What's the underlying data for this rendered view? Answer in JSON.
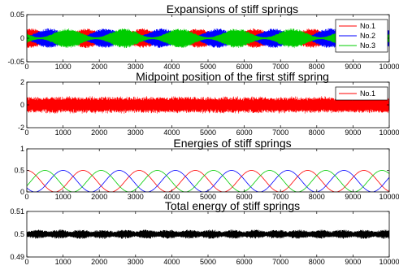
{
  "chart_data": [
    {
      "type": "line",
      "title": "Expansions of stiff springs",
      "xlabel": "",
      "ylabel": "",
      "xlim": [
        0,
        10000
      ],
      "ylim": [
        -0.05,
        0.05
      ],
      "xticks": [
        "0",
        "1000",
        "2000",
        "3000",
        "4000",
        "5000",
        "6000",
        "7000",
        "8000",
        "9000",
        "10000"
      ],
      "yticks": [
        "0.05",
        "0",
        "-0.05"
      ],
      "legend_position": "top-right",
      "series": [
        {
          "name": "No.1",
          "color": "#ff0000",
          "envelope": "amplitude ~0.02, beats with period ~1550, peaks near 100, 1700, 3200, 4700, 6200, 7700, 9300"
        },
        {
          "name": "No.2",
          "color": "#0000ff",
          "envelope": "amplitude ~0.02, beats shifted by one third period"
        },
        {
          "name": "No.3",
          "color": "#00cc00",
          "envelope": "amplitude ~0.02, beats shifted by two thirds period"
        }
      ]
    },
    {
      "type": "line",
      "title": "Midpoint position of the first stiff spring",
      "xlabel": "",
      "ylabel": "",
      "xlim": [
        0,
        10000
      ],
      "ylim": [
        -2,
        2
      ],
      "xticks": [
        "0",
        "1000",
        "2000",
        "3000",
        "4000",
        "5000",
        "6000",
        "7000",
        "8000",
        "9000",
        "10000"
      ],
      "yticks": [
        "2",
        "0",
        "-2"
      ],
      "legend_position": "top-right",
      "series": [
        {
          "name": "No.1",
          "color": "#ff0000",
          "range": [
            -0.7,
            0.7
          ]
        }
      ]
    },
    {
      "type": "line",
      "title": "Energies of stiff springs",
      "xlabel": "",
      "ylabel": "",
      "xlim": [
        0,
        10000
      ],
      "ylim": [
        0,
        1
      ],
      "xticks": [
        "0",
        "1000",
        "2000",
        "3000",
        "4000",
        "5000",
        "6000",
        "7000",
        "8000",
        "9000",
        "10000"
      ],
      "yticks": [
        "1",
        "0.5",
        "0"
      ],
      "series": [
        {
          "color": "#ff0000",
          "peak": 0.5,
          "peaks_at": [
            0,
            1550,
            3100,
            4650,
            6200,
            7750,
            9300
          ]
        },
        {
          "color": "#0000ff",
          "peak": 0.5,
          "peaks_at": [
            1000,
            2550,
            4100,
            5650,
            7200,
            8750
          ]
        },
        {
          "color": "#00cc00",
          "peak": 0.5,
          "peaks_at": [
            500,
            2050,
            3600,
            5150,
            6700,
            8250,
            9800
          ]
        }
      ]
    },
    {
      "type": "line",
      "title": "Total energy of stiff springs",
      "xlabel": "",
      "ylabel": "",
      "xlim": [
        0,
        10000
      ],
      "ylim": [
        0.49,
        0.51
      ],
      "xticks": [
        "0",
        "1000",
        "2000",
        "3000",
        "4000",
        "5000",
        "6000",
        "7000",
        "8000",
        "9000",
        "10000"
      ],
      "yticks": [
        "0.51",
        "0.5",
        "0.49"
      ],
      "series": [
        {
          "color": "#000000",
          "center": 0.5,
          "range": [
            0.498,
            0.502
          ]
        }
      ]
    }
  ]
}
